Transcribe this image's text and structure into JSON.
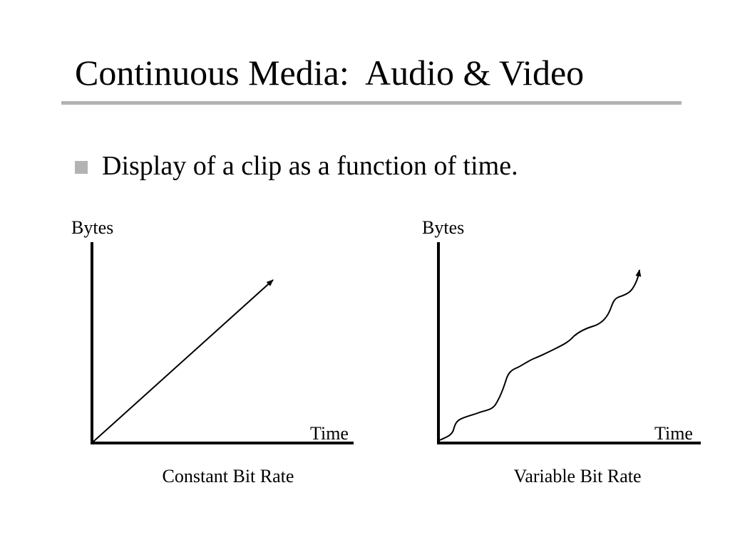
{
  "slide": {
    "title": "Continuous Media:  Audio & Video",
    "accent_color": "#b3b3b3",
    "bullets": [
      {
        "icon": "square-bullet-icon",
        "text": "Display of a clip as a function of time."
      }
    ]
  },
  "diagrams": {
    "constant": {
      "y_axis_label": "Bytes",
      "x_axis_label": "Time",
      "caption": "Constant Bit Rate"
    },
    "variable": {
      "y_axis_label": "Bytes",
      "x_axis_label": "Time",
      "caption": "Variable Bit Rate"
    }
  }
}
